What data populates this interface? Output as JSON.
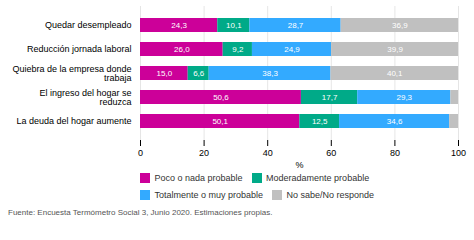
{
  "chart_data": {
    "type": "bar",
    "orientation": "horizontal",
    "stacked": true,
    "categories": [
      "Quedar desempleado",
      "Reducción jornada laboral",
      "Quiebra de la empresa donde\ntrabaja",
      "El ingreso del hogar se\nreduzca",
      "La deuda del hogar aumente"
    ],
    "series": [
      {
        "name": "Poco o nada probable",
        "color": "#CC0099",
        "values": [
          24.3,
          26.0,
          15.0,
          50.6,
          50.1
        ],
        "value_labels": [
          "24,3",
          "26,0",
          "15,0",
          "50,6",
          "50,1"
        ]
      },
      {
        "name": "Moderadamente probable",
        "color": "#00AA88",
        "values": [
          10.1,
          9.2,
          6.6,
          17.7,
          12.5
        ],
        "value_labels": [
          "10,1",
          "9,2",
          "6,6",
          "17,7",
          "12,5"
        ]
      },
      {
        "name": "Totalmente o muy probable",
        "color": "#33AAFF",
        "values": [
          28.7,
          24.9,
          38.3,
          29.3,
          34.6
        ],
        "value_labels": [
          "28,7",
          "24,9",
          "38,3",
          "29,3",
          "34,6"
        ]
      },
      {
        "name": "No sabe/No responde",
        "color": "#C0C0C0",
        "values": [
          36.9,
          39.9,
          40.1,
          2.4,
          2.8
        ],
        "value_labels": [
          "36,9",
          "39,9",
          "40,1",
          null,
          null
        ]
      }
    ],
    "xlabel": "%",
    "xlim": [
      0,
      100
    ],
    "xticks": [
      0,
      20,
      40,
      60,
      80,
      100
    ],
    "grid": true,
    "data_labels": true,
    "caption": "Fuente: Encuesta Termómetro Social 3, Junio 2020. Estimaciones propias."
  }
}
